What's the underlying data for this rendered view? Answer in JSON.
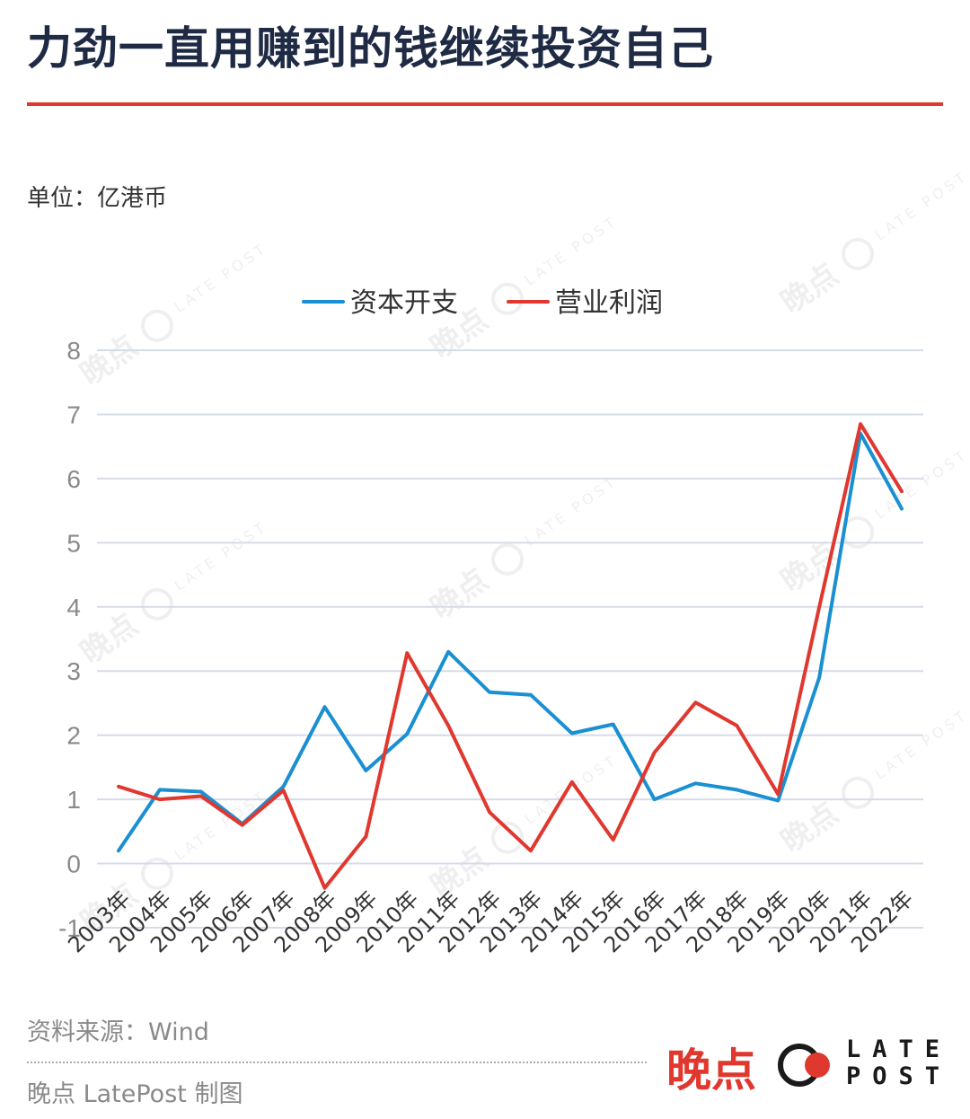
{
  "title": "力劲一直用赚到的钱继续投资自己",
  "unit_label": "单位：亿港币",
  "source": "资料来源：Wind",
  "credit": "晚点 LatePost 制图",
  "logo": {
    "cn": "晚点",
    "en_line1": "LATE",
    "en_line2": "POST",
    "icon": "late-post-logo-icon"
  },
  "watermark": {
    "cn": "晚点",
    "en": "LATE POST"
  },
  "colors": {
    "title": "#1f2a44",
    "accent_red": "#e0372e",
    "capex_blue": "#1a8fd1",
    "profit_red": "#e0372e",
    "grid": "#d6dbe8"
  },
  "chart_data": {
    "type": "line",
    "categories": [
      "2003年",
      "2004年",
      "2005年",
      "2006年",
      "2007年",
      "2008年",
      "2009年",
      "2010年",
      "2011年",
      "2012年",
      "2013年",
      "2014年",
      "2015年",
      "2016年",
      "2017年",
      "2018年",
      "2019年",
      "2020年",
      "2021年",
      "2022年"
    ],
    "series": [
      {
        "name": "资本开支",
        "color": "#1a8fd1",
        "values": [
          0.2,
          1.15,
          1.12,
          0.62,
          1.2,
          2.44,
          1.45,
          2.02,
          3.3,
          2.67,
          2.63,
          2.03,
          2.17,
          1.0,
          1.25,
          1.15,
          0.98,
          2.9,
          6.7,
          5.53
        ]
      },
      {
        "name": "营业利润",
        "color": "#e0372e",
        "values": [
          1.2,
          1.0,
          1.05,
          0.6,
          1.14,
          -0.38,
          0.42,
          3.28,
          2.15,
          0.8,
          0.2,
          1.27,
          0.37,
          1.73,
          2.51,
          2.15,
          1.08,
          4.0,
          6.85,
          5.8
        ]
      }
    ],
    "yticks": [
      "-1",
      "0",
      "1",
      "2",
      "3",
      "4",
      "5",
      "6",
      "7",
      "8"
    ],
    "ylim": [
      -1,
      8
    ],
    "grid": true,
    "legend_position": "top-center",
    "xlabel": "",
    "ylabel": ""
  }
}
